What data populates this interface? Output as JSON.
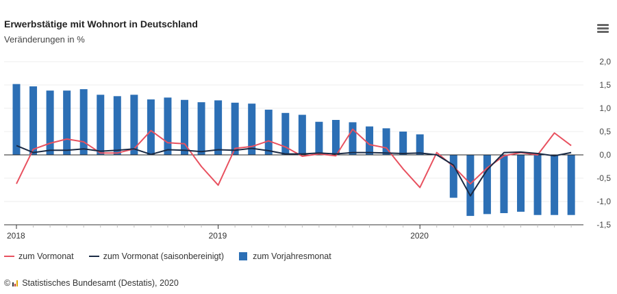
{
  "header": {
    "title": "Erwerbstätige mit Wohnort in Deutschland",
    "subtitle": "Veränderungen in %",
    "menu_icon": "hamburger-menu-icon"
  },
  "legend": {
    "items": [
      {
        "label": "zum Vormonat",
        "color": "#e8515f",
        "kind": "line"
      },
      {
        "label": "zum Vormonat (saisonbereinigt)",
        "color": "#1a2a44",
        "kind": "line"
      },
      {
        "label": "zum Vorjahresmonat",
        "color": "#2c6fb5",
        "kind": "bar"
      }
    ]
  },
  "credits": {
    "copyright": "©",
    "text": "Statistisches Bundesamt (Destatis), 2020"
  },
  "chart_data": {
    "type": "bar+line",
    "title": "Erwerbstätige mit Wohnort in Deutschland",
    "subtitle": "Veränderungen in %",
    "xlabel": "",
    "ylabel": "",
    "ylim": [
      -1.5,
      2.0
    ],
    "yticks": [
      2.0,
      1.5,
      1.0,
      0.5,
      0.0,
      -0.5,
      -1.0,
      -1.5
    ],
    "ytick_labels": [
      "2,0",
      "1,5",
      "1,0",
      "0,5",
      "0,0",
      "-0,5",
      "-1,0",
      "-1,5"
    ],
    "y_axis_position": "right",
    "grid": true,
    "legend_position": "bottom-left",
    "x_tick_labels": [
      {
        "index": 0,
        "label": "2018"
      },
      {
        "index": 12,
        "label": "2019"
      },
      {
        "index": 24,
        "label": "2020"
      }
    ],
    "categories": [
      "2018-01",
      "2018-02",
      "2018-03",
      "2018-04",
      "2018-05",
      "2018-06",
      "2018-07",
      "2018-08",
      "2018-09",
      "2018-10",
      "2018-11",
      "2018-12",
      "2019-01",
      "2019-02",
      "2019-03",
      "2019-04",
      "2019-05",
      "2019-06",
      "2019-07",
      "2019-08",
      "2019-09",
      "2019-10",
      "2019-11",
      "2019-12",
      "2020-01",
      "2020-02",
      "2020-03",
      "2020-04",
      "2020-05",
      "2020-06",
      "2020-07",
      "2020-08",
      "2020-09",
      "2020-10"
    ],
    "series": [
      {
        "name": "zum Vorjahresmonat",
        "type": "bar",
        "color": "#2c6fb5",
        "values": [
          1.52,
          1.47,
          1.38,
          1.38,
          1.41,
          1.29,
          1.26,
          1.29,
          1.19,
          1.23,
          1.18,
          1.13,
          1.17,
          1.12,
          1.1,
          0.97,
          0.9,
          0.86,
          0.71,
          0.75,
          0.7,
          0.61,
          0.57,
          0.5,
          0.44,
          0.01,
          -0.92,
          -1.31,
          -1.27,
          -1.25,
          -1.22,
          -1.29,
          -1.29,
          -1.29
        ]
      },
      {
        "name": "zum Vormonat",
        "type": "line",
        "color": "#e8515f",
        "values": [
          -0.62,
          0.12,
          0.25,
          0.34,
          0.28,
          0.04,
          0.04,
          0.13,
          0.52,
          0.26,
          0.24,
          -0.25,
          -0.65,
          0.14,
          0.18,
          0.3,
          0.17,
          -0.03,
          0.02,
          -0.02,
          0.55,
          0.22,
          0.15,
          -0.3,
          -0.7,
          0.05,
          -0.25,
          -0.62,
          -0.28,
          -0.02,
          0.05,
          0.0,
          0.47,
          0.2
        ]
      },
      {
        "name": "zum Vormonat (saisonbereinigt)",
        "type": "line",
        "color": "#1a2a44",
        "values": [
          0.2,
          0.05,
          0.1,
          0.1,
          0.13,
          0.08,
          0.1,
          0.13,
          0.01,
          0.11,
          0.1,
          0.07,
          0.11,
          0.1,
          0.14,
          0.09,
          0.02,
          0.02,
          0.04,
          0.02,
          0.05,
          0.05,
          0.04,
          0.03,
          0.04,
          0.0,
          -0.22,
          -0.88,
          -0.32,
          0.05,
          0.06,
          0.03,
          -0.02,
          0.05
        ]
      }
    ]
  }
}
